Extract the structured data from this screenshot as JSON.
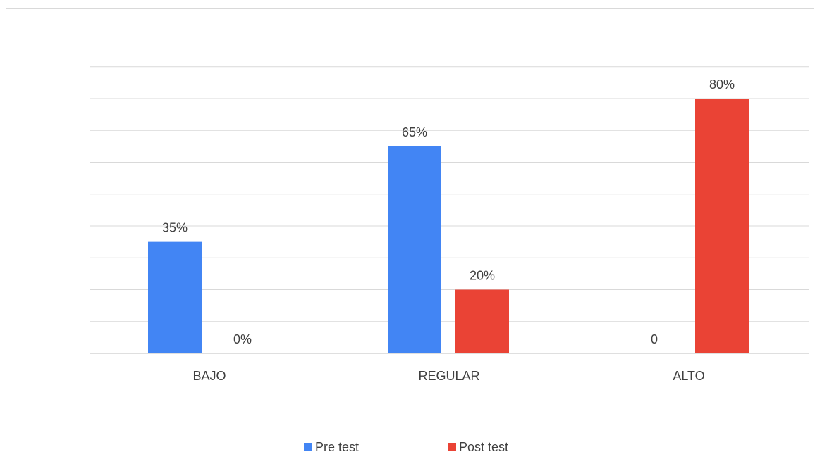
{
  "chart_data": {
    "type": "bar",
    "categories": [
      "BAJO",
      "REGULAR",
      "ALTO"
    ],
    "series": [
      {
        "name": "Pre test",
        "color": "#4285F4",
        "values": [
          35,
          65,
          0
        ],
        "labels": [
          "35%",
          "65%",
          "0"
        ]
      },
      {
        "name": "Post test",
        "color": "#EA4335",
        "values": [
          0,
          20,
          80
        ],
        "labels": [
          "0%",
          "20%",
          "80%"
        ]
      }
    ],
    "ylim": [
      0,
      90
    ],
    "y_gridline_step": 10,
    "grid": true,
    "y_axis_labels_shown": false,
    "legend_position": "bottom"
  }
}
